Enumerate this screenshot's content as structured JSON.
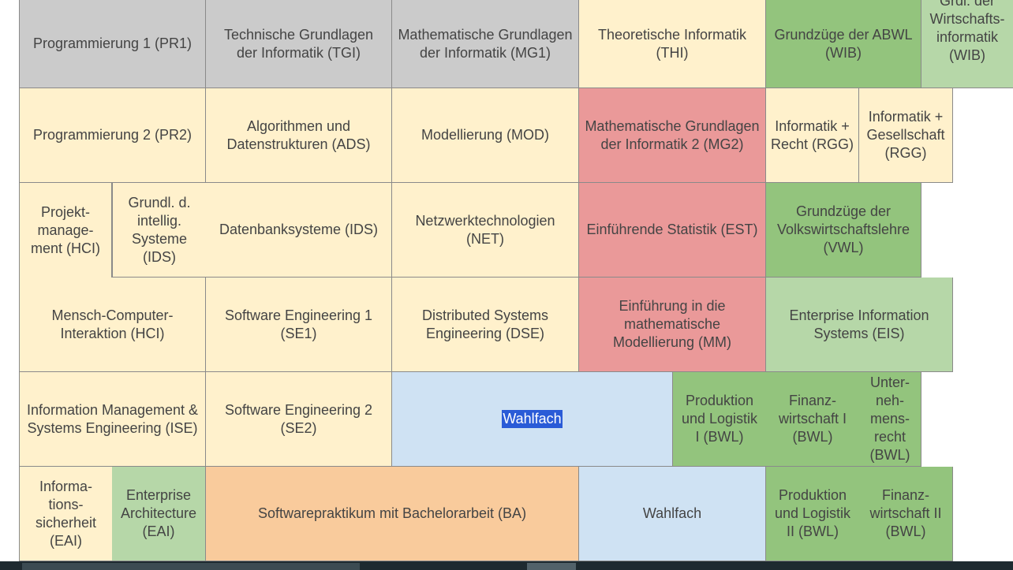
{
  "courses": {
    "pr1": "Programmierung 1 (PR1)",
    "tgi": "Technische Grundlagen der Informatik (TGI)",
    "mg1": "Mathematische Grundlagen der Informatik (MG1)",
    "thi": "Theoretische Informatik (THI)",
    "abwl": "Grundzüge der ABWL (WIB)",
    "wib": "Grdl. der Wirtschafts-informatik (WIB)",
    "pr2": "Programmierung 2 (PR2)",
    "ads": "Algorithmen und Datenstrukturen (ADS)",
    "mod": "Modellierung (MOD)",
    "mg2": "Mathematische Grundlagen der Informatik 2 (MG2)",
    "rgg_recht": "Informatik + Recht (RGG)",
    "rgg_ges": "Informatik + Gesellschaft (RGG)",
    "pm": "Projekt-manage-ment (HCI)",
    "gis": "Grundl. d. intellig. Systeme (IDS)",
    "dbs": "Datenbanksysteme (IDS)",
    "net": "Netzwerktechnologien (NET)",
    "est": "Einführende Statistik (EST)",
    "vwl": "Grundzüge der Volkswirtschaftslehre (VWL)",
    "mci": "Mensch-Computer-Interaktion (HCI)",
    "se1": "Software Engineering 1 (SE1)",
    "dse": "Distributed Systems Engineering (DSE)",
    "mm": "Einführung in die mathematische Modellierung (MM)",
    "eis": "Enterprise Information Systems (EIS)",
    "ise": "Information Management & Systems Engineering (ISE)",
    "se2": "Software Engineering 2 (SE2)",
    "wahl1": "Wahlfach",
    "pl1": "Produktion und Logistik I (BWL)",
    "fin1": "Finanz-wirtschaft I (BWL)",
    "ur": "Unter-neh-mens-recht (BWL)",
    "is": "Informa-tions-sicherheit (EAI)",
    "ea": "Enterprise Architecture (EAI)",
    "ba": "Softwarepraktikum mit Bachelorarbeit (BA)",
    "wahl2": "Wahlfach",
    "pl2": "Produktion und Logistik II (BWL)",
    "fin2": "Finanz-wirtschaft II (BWL)"
  }
}
